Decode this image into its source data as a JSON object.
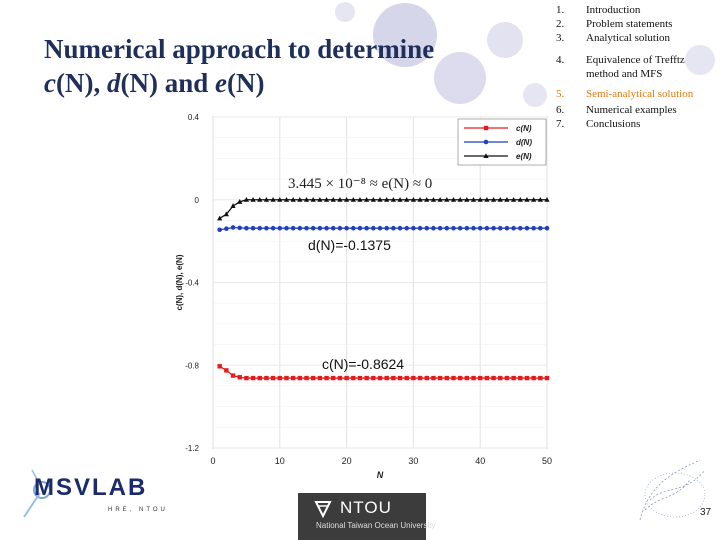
{
  "slide": {
    "title_line1": "Numerical approach to determine",
    "title_line2_c": "c",
    "title_line2_N1": "(N), ",
    "title_line2_d": "d",
    "title_line2_N2": "(N) and ",
    "title_line2_e": "e",
    "title_line2_N3": "(N)",
    "page_number": "37"
  },
  "toc": [
    {
      "num": "1.",
      "label": "Introduction",
      "active": false
    },
    {
      "num": "2.",
      "label": "Problem statements",
      "active": false
    },
    {
      "num": "3.",
      "label": "Analytical solution",
      "active": false
    },
    {
      "num": "4.",
      "label": "Equivalence of Trefftz",
      "label2": "method and MFS",
      "active": false
    },
    {
      "num": "5.",
      "label": "Semi-analytical solution",
      "active": true
    },
    {
      "num": "6.",
      "label": "Numerical examples",
      "active": false
    },
    {
      "num": "7.",
      "label": "Conclusions",
      "active": false
    }
  ],
  "annotations": {
    "e_eq": "3.445 × 10⁻⁸ ≈ e(N) ≈ 0",
    "d_eq": "d(N)=-0.1375",
    "c_eq": "c(N)=-0.8624"
  },
  "logos": {
    "msvlab": "MSVLAB",
    "msvlab_sub": "HRE, NTOU",
    "ntou": "NTOU",
    "ntou_sub": "National Taiwan Ocean University"
  },
  "colors": {
    "title": "#1f2f5a",
    "active_toc": "#e07a10",
    "series_c": "#e41a1c",
    "series_d": "#1f3fbf",
    "series_e": "#111111",
    "circles": "#c8c8e0"
  },
  "chart_data": {
    "type": "line",
    "xlabel": "N",
    "ylabel": "c(N), d(N), e(N)",
    "xlim": [
      0,
      50
    ],
    "ylim": [
      -1.2,
      0.4
    ],
    "xticks": [
      0,
      10,
      20,
      30,
      40,
      50
    ],
    "yticks": [
      0.4,
      0,
      -0.4,
      -0.8,
      -1.2
    ],
    "grid": true,
    "legend": "top-right",
    "series": [
      {
        "name": "c(N)",
        "color": "#e41a1c",
        "marker": "square",
        "x": [
          1,
          2,
          3,
          4,
          5,
          6,
          7,
          8,
          9,
          10,
          11,
          12,
          13,
          14,
          15,
          16,
          17,
          18,
          19,
          20,
          21,
          22,
          23,
          24,
          25,
          26,
          27,
          28,
          29,
          30,
          31,
          32,
          33,
          34,
          35,
          36,
          37,
          38,
          39,
          40,
          41,
          42,
          43,
          44,
          45,
          46,
          47,
          48,
          49,
          50
        ],
        "y": [
          -0.805,
          -0.825,
          -0.85,
          -0.858,
          -0.862,
          -0.862,
          -0.862,
          -0.862,
          -0.862,
          -0.862,
          -0.862,
          -0.862,
          -0.862,
          -0.862,
          -0.862,
          -0.862,
          -0.862,
          -0.862,
          -0.862,
          -0.862,
          -0.862,
          -0.862,
          -0.862,
          -0.862,
          -0.862,
          -0.862,
          -0.862,
          -0.862,
          -0.862,
          -0.862,
          -0.862,
          -0.862,
          -0.862,
          -0.862,
          -0.862,
          -0.862,
          -0.862,
          -0.862,
          -0.862,
          -0.862,
          -0.862,
          -0.862,
          -0.862,
          -0.862,
          -0.862,
          -0.862,
          -0.862,
          -0.862,
          -0.862,
          -0.862
        ]
      },
      {
        "name": "d(N)",
        "color": "#1f3fbf",
        "marker": "circle",
        "x": [
          1,
          2,
          3,
          4,
          5,
          6,
          7,
          8,
          9,
          10,
          11,
          12,
          13,
          14,
          15,
          16,
          17,
          18,
          19,
          20,
          21,
          22,
          23,
          24,
          25,
          26,
          27,
          28,
          29,
          30,
          31,
          32,
          33,
          34,
          35,
          36,
          37,
          38,
          39,
          40,
          41,
          42,
          43,
          44,
          45,
          46,
          47,
          48,
          49,
          50
        ],
        "y": [
          -0.145,
          -0.14,
          -0.134,
          -0.136,
          -0.1375,
          -0.1375,
          -0.1375,
          -0.1375,
          -0.1375,
          -0.1375,
          -0.1375,
          -0.1375,
          -0.1375,
          -0.1375,
          -0.1375,
          -0.1375,
          -0.1375,
          -0.1375,
          -0.1375,
          -0.1375,
          -0.1375,
          -0.1375,
          -0.1375,
          -0.1375,
          -0.1375,
          -0.1375,
          -0.1375,
          -0.1375,
          -0.1375,
          -0.1375,
          -0.1375,
          -0.1375,
          -0.1375,
          -0.1375,
          -0.1375,
          -0.1375,
          -0.1375,
          -0.1375,
          -0.1375,
          -0.1375,
          -0.1375,
          -0.1375,
          -0.1375,
          -0.1375,
          -0.1375,
          -0.1375,
          -0.1375,
          -0.1375,
          -0.1375,
          -0.1375
        ]
      },
      {
        "name": "e(N)",
        "color": "#111111",
        "marker": "triangle",
        "x": [
          1,
          2,
          3,
          4,
          5,
          6,
          7,
          8,
          9,
          10,
          11,
          12,
          13,
          14,
          15,
          16,
          17,
          18,
          19,
          20,
          21,
          22,
          23,
          24,
          25,
          26,
          27,
          28,
          29,
          30,
          31,
          32,
          33,
          34,
          35,
          36,
          37,
          38,
          39,
          40,
          41,
          42,
          43,
          44,
          45,
          46,
          47,
          48,
          49,
          50
        ],
        "y": [
          -0.09,
          -0.07,
          -0.03,
          -0.01,
          0,
          0,
          0,
          0,
          0,
          0,
          0,
          0,
          0,
          0,
          0,
          0,
          0,
          0,
          0,
          0,
          0,
          0,
          0,
          0,
          0,
          0,
          0,
          0,
          0,
          0,
          0,
          0,
          0,
          0,
          0,
          0,
          0,
          0,
          0,
          0,
          0,
          0,
          0,
          0,
          0,
          0,
          0,
          0,
          0,
          0
        ]
      }
    ]
  }
}
